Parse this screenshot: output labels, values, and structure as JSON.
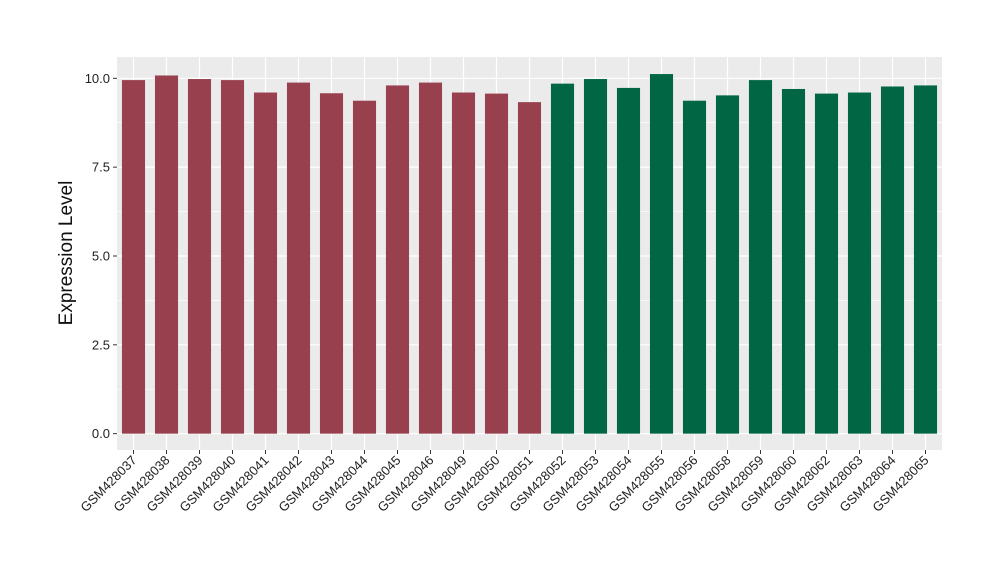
{
  "chart_data": {
    "type": "bar",
    "title": "",
    "xlabel": "",
    "ylabel": "Expression Level",
    "ylim": [
      -0.46,
      10.6
    ],
    "yticks": [
      0.0,
      2.5,
      5.0,
      7.5,
      10.0
    ],
    "ytick_labels": [
      "0.0",
      "2.5",
      "5.0",
      "7.5",
      "10.0"
    ],
    "grid": true,
    "legend": "none",
    "background_color": "#ebebeb",
    "grid_color": "#ffffff",
    "categories": [
      "GSM428037",
      "GSM428038",
      "GSM428039",
      "GSM428040",
      "GSM428041",
      "GSM428042",
      "GSM428043",
      "GSM428044",
      "GSM428045",
      "GSM428046",
      "GSM428049",
      "GSM428050",
      "GSM428051",
      "GSM428052",
      "GSM428053",
      "GSM428054",
      "GSM428055",
      "GSM428056",
      "GSM428058",
      "GSM428059",
      "GSM428060",
      "GSM428062",
      "GSM428063",
      "GSM428064",
      "GSM428065"
    ],
    "values": [
      9.95,
      10.08,
      9.98,
      9.95,
      9.6,
      9.88,
      9.58,
      9.37,
      9.8,
      9.88,
      9.6,
      9.57,
      9.33,
      9.85,
      9.98,
      9.73,
      10.12,
      9.37,
      9.52,
      9.95,
      9.7,
      9.57,
      9.6,
      9.77,
      9.8
    ],
    "bar_colors": [
      "#99404f",
      "#99404f",
      "#99404f",
      "#99404f",
      "#99404f",
      "#99404f",
      "#99404f",
      "#99404f",
      "#99404f",
      "#99404f",
      "#99404f",
      "#99404f",
      "#99404f",
      "#006644",
      "#006644",
      "#006644",
      "#006644",
      "#006644",
      "#006644",
      "#006644",
      "#006644",
      "#006644",
      "#006644",
      "#006644",
      "#006644"
    ]
  }
}
